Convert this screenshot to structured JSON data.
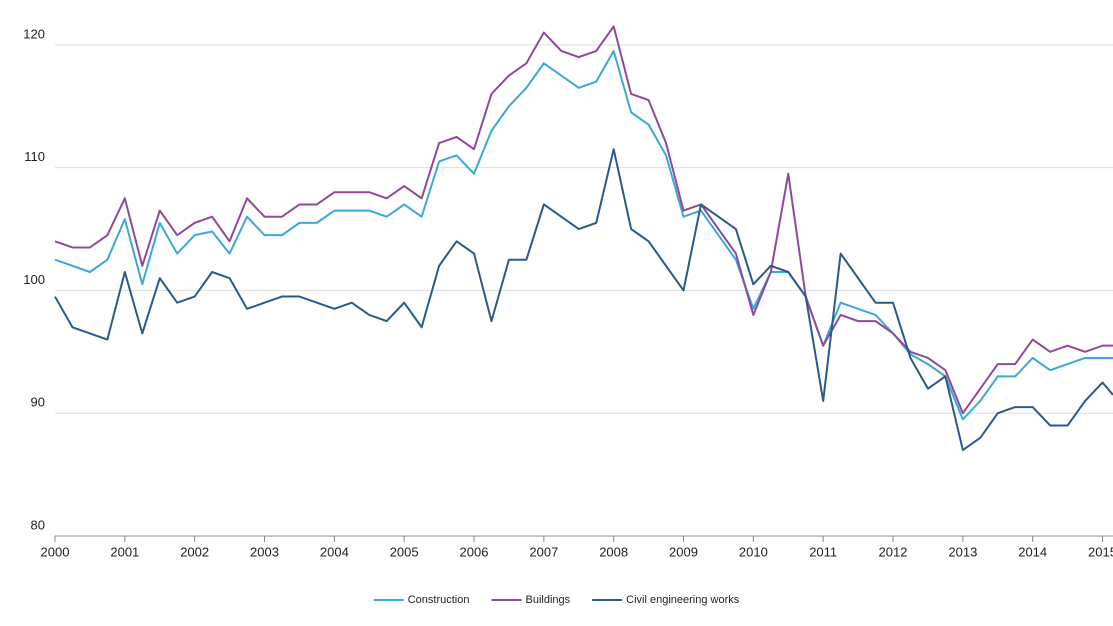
{
  "chart_data": {
    "type": "line",
    "x": [
      2000,
      2000.25,
      2000.5,
      2000.75,
      2001,
      2001.25,
      2001.5,
      2001.75,
      2002,
      2002.25,
      2002.5,
      2002.75,
      2003,
      2003.25,
      2003.5,
      2003.75,
      2004,
      2004.25,
      2004.5,
      2004.75,
      2005,
      2005.25,
      2005.5,
      2005.75,
      2006,
      2006.25,
      2006.5,
      2006.75,
      2007,
      2007.25,
      2007.5,
      2007.75,
      2008,
      2008.25,
      2008.5,
      2008.75,
      2009,
      2009.25,
      2009.5,
      2009.75,
      2010,
      2010.25,
      2010.5,
      2010.75,
      2011,
      2011.25,
      2011.5,
      2011.75,
      2012,
      2012.25,
      2012.5,
      2012.75,
      2013,
      2013.25,
      2013.5,
      2013.75,
      2014,
      2014.25,
      2014.5,
      2014.75,
      2015,
      2015.15
    ],
    "series": [
      {
        "name": "Construction",
        "color": "#3aa8d8",
        "values": [
          102.5,
          102,
          101.5,
          102.5,
          105.8,
          100.5,
          105.5,
          103,
          104.5,
          104.8,
          103,
          106,
          104.5,
          104.5,
          105.5,
          105.5,
          106.5,
          106.5,
          106.5,
          106,
          107,
          106,
          110.5,
          111,
          109.5,
          113,
          115,
          116.5,
          118.5,
          117.5,
          116.5,
          117,
          119.5,
          114.5,
          113.5,
          111,
          106,
          106.5,
          104.5,
          102.5,
          98.5,
          101.5,
          101.5,
          99.5,
          95.5,
          99,
          98.5,
          98,
          96.5,
          94.8,
          94,
          93,
          89.5,
          91,
          93,
          93,
          94.5,
          93.5,
          94,
          94.5,
          94.5,
          94.5
        ]
      },
      {
        "name": "Buildings",
        "color": "#8e4a9a",
        "values": [
          104,
          103.5,
          103.5,
          104.5,
          107.5,
          102,
          106.5,
          104.5,
          105.5,
          106,
          104,
          107.5,
          106,
          106,
          107,
          107,
          108,
          108,
          108,
          107.5,
          108.5,
          107.5,
          112,
          112.5,
          111.5,
          116,
          117.5,
          118.5,
          121,
          119.5,
          119,
          119.5,
          121.5,
          116,
          115.5,
          112,
          106.5,
          107,
          105,
          103,
          98,
          101.5,
          109.5,
          99.5,
          95.5,
          98,
          97.5,
          97.5,
          96.5,
          95,
          94.5,
          93.5,
          90,
          92,
          94,
          94,
          96,
          95,
          95.5,
          95,
          95.5,
          95.5
        ]
      },
      {
        "name": "Civil engineering works",
        "color": "#2a5a8c",
        "values": [
          99.5,
          97,
          96.5,
          96,
          101.5,
          96.5,
          101,
          99,
          99.5,
          101.5,
          101,
          98.5,
          99,
          99.5,
          99.5,
          99,
          98.5,
          99,
          98,
          97.5,
          99,
          97,
          102,
          104,
          103,
          97.5,
          102.5,
          102.5,
          107,
          106,
          105,
          105.5,
          111.5,
          105,
          104,
          102,
          100,
          107,
          106,
          105,
          100.5,
          102,
          101.5,
          99.5,
          91,
          103,
          101,
          99,
          99,
          94.5,
          92,
          93,
          87,
          88,
          90,
          90.5,
          90.5,
          89,
          89,
          91,
          92.5,
          91.5
        ]
      }
    ],
    "xlim": [
      2000,
      2015.15
    ],
    "xticks": [
      2000,
      2001,
      2002,
      2003,
      2004,
      2005,
      2006,
      2007,
      2008,
      2009,
      2010,
      2011,
      2012,
      2013,
      2014,
      2015
    ],
    "ylim": [
      80,
      123
    ],
    "yticks": [
      80,
      90,
      100,
      110,
      120
    ],
    "grid": true,
    "legend": "bottom"
  }
}
